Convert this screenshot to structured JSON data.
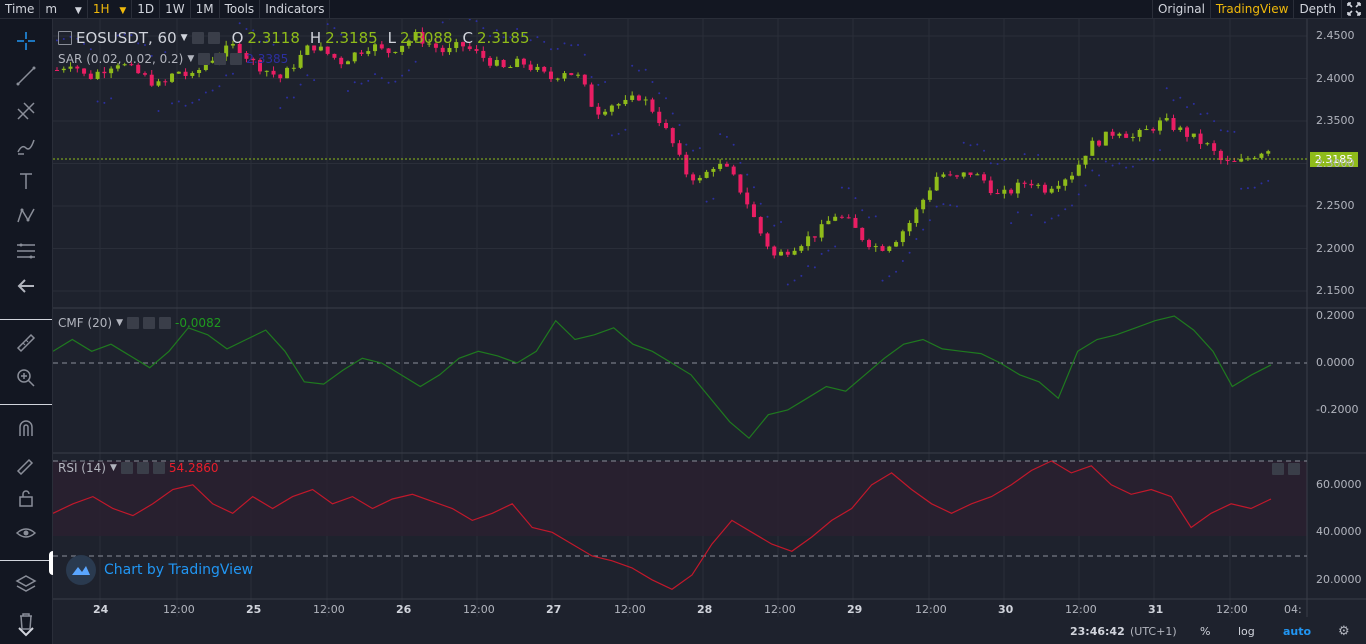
{
  "topbar": {
    "left": [
      "Time",
      "m",
      "1H",
      "1D",
      "1W",
      "1M",
      "Tools",
      "Indicators"
    ],
    "active_interval": "1H",
    "right": [
      "Original",
      "TradingView",
      "Depth"
    ],
    "active_view": "TradingView"
  },
  "main_pane": {
    "symbol": "EOSUSDT, 60",
    "ohlc": {
      "o_label": "O",
      "o": "2.3118",
      "h_label": "H",
      "h": "2.3185",
      "l_label": "L",
      "l": "2.3088",
      "c_label": "C",
      "c": "2.3185"
    },
    "sar_label": "SAR (0.02, 0.02, 0.2)",
    "sar_value": "2.3385",
    "last_price": "2.3185",
    "y_ticks": [
      "2.4500",
      "2.4000",
      "2.3500",
      "2.3000",
      "2.2500",
      "2.2000",
      "2.1500"
    ]
  },
  "cmf_pane": {
    "label": "CMF (20)",
    "value": "-0.0082",
    "y_ticks": [
      "0.2000",
      "0.0000",
      "-0.2000"
    ]
  },
  "rsi_pane": {
    "label": "RSI (14)",
    "value": "54.2860",
    "y_ticks": [
      "60.0000",
      "40.0000",
      "20.0000"
    ]
  },
  "x_ticks": [
    "24",
    "12:00",
    "25",
    "12:00",
    "26",
    "12:00",
    "27",
    "12:00",
    "28",
    "12:00",
    "29",
    "12:00",
    "30",
    "12:00",
    "31",
    "12:00",
    "04:"
  ],
  "watermark": "Chart by TradingView",
  "bottom": {
    "time": "23:46:42",
    "tz": "(UTC+1)",
    "percent": "%",
    "log": "log",
    "auto": "auto"
  },
  "colors": {
    "up": "#8fbc1a",
    "down": "#e91e63",
    "sar": "#2c2fa0",
    "cmf": "#1f7a1f",
    "rsi": "#c2182b",
    "accent": "#f0b90b"
  },
  "chart_data": {
    "type": "line",
    "price_range": [
      2.13,
      2.47
    ],
    "close_path": [
      2.41,
      2.42,
      2.4,
      2.41,
      2.42,
      2.41,
      2.4,
      2.39,
      2.41,
      2.4,
      2.42,
      2.43,
      2.44,
      2.42,
      2.41,
      2.4,
      2.42,
      2.44,
      2.43,
      2.42,
      2.43,
      2.44,
      2.43,
      2.44,
      2.45,
      2.44,
      2.43,
      2.44,
      2.43,
      2.42,
      2.41,
      2.42,
      2.41,
      2.4,
      2.41,
      2.4,
      2.36,
      2.37,
      2.37,
      2.38,
      2.36,
      2.33,
      2.29,
      2.28,
      2.3,
      2.29,
      2.26,
      2.22,
      2.19,
      2.2,
      2.21,
      2.22,
      2.24,
      2.23,
      2.21,
      2.2,
      2.21,
      2.23,
      2.26,
      2.29,
      2.28,
      2.29,
      2.28,
      2.26,
      2.27,
      2.28,
      2.27,
      2.28,
      2.29,
      2.32,
      2.33,
      2.34,
      2.33,
      2.34,
      2.35,
      2.34,
      2.33,
      2.32,
      2.3,
      2.3,
      2.31,
      2.3185
    ],
    "cmf": [
      0.05,
      0.1,
      0.05,
      0.08,
      0.03,
      -0.02,
      0.05,
      0.15,
      0.12,
      0.06,
      0.1,
      0.14,
      0.05,
      -0.08,
      -0.09,
      -0.03,
      0.02,
      0.0,
      -0.05,
      -0.1,
      -0.05,
      0.02,
      0.05,
      0.03,
      0.0,
      0.05,
      0.18,
      0.1,
      0.12,
      0.15,
      0.08,
      0.05,
      0.0,
      -0.05,
      -0.15,
      -0.25,
      -0.32,
      -0.22,
      -0.2,
      -0.15,
      -0.1,
      -0.12,
      -0.05,
      0.02,
      0.08,
      0.1,
      0.06,
      0.05,
      0.04,
      0.0,
      -0.05,
      -0.08,
      -0.15,
      0.05,
      0.1,
      0.12,
      0.15,
      0.18,
      0.2,
      0.14,
      0.05,
      -0.1,
      -0.05,
      -0.0082
    ],
    "rsi": [
      48,
      52,
      55,
      50,
      47,
      52,
      58,
      60,
      52,
      48,
      55,
      50,
      55,
      58,
      52,
      55,
      50,
      54,
      56,
      53,
      50,
      45,
      48,
      52,
      42,
      40,
      35,
      30,
      28,
      25,
      20,
      16,
      22,
      35,
      45,
      40,
      35,
      32,
      38,
      45,
      50,
      60,
      65,
      58,
      52,
      48,
      52,
      55,
      60,
      66,
      70,
      65,
      68,
      60,
      56,
      58,
      55,
      42,
      48,
      52,
      50,
      54
    ]
  }
}
